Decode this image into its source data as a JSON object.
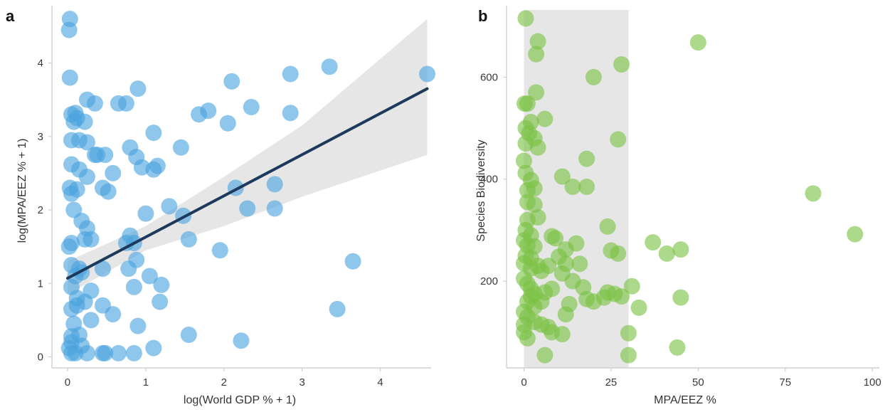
{
  "chart_data": [
    {
      "type": "scatter",
      "panel_label": "a",
      "xlabel": "log(World GDP % + 1)",
      "ylabel": "log(MPA/EEZ % + 1)",
      "xlim": [
        -0.2,
        4.65
      ],
      "ylim": [
        -0.15,
        4.78
      ],
      "xticks": [
        0,
        1,
        2,
        3,
        4
      ],
      "yticks": [
        0,
        1,
        2,
        3,
        4
      ],
      "grid": false,
      "point_color": "#4aa3df",
      "fit_line": {
        "x": [
          0.0,
          4.6
        ],
        "y": [
          1.07,
          3.65
        ],
        "color": "#1d3a5c"
      },
      "confidence_band_color": "#e6e6e6",
      "confidence_band": {
        "x": [
          0.0,
          1.0,
          2.0,
          3.0,
          4.6
        ],
        "upper": [
          1.3,
          1.78,
          2.45,
          3.15,
          4.6
        ],
        "lower": [
          0.85,
          1.45,
          1.78,
          2.18,
          2.75
        ]
      },
      "points": [
        [
          0.03,
          4.6
        ],
        [
          0.02,
          4.45
        ],
        [
          0.03,
          3.8
        ],
        [
          0.9,
          3.65
        ],
        [
          2.1,
          3.75
        ],
        [
          3.35,
          3.95
        ],
        [
          2.85,
          3.85
        ],
        [
          4.6,
          3.85
        ],
        [
          0.25,
          3.5
        ],
        [
          0.35,
          3.45
        ],
        [
          0.65,
          3.45
        ],
        [
          0.75,
          3.45
        ],
        [
          0.05,
          3.3
        ],
        [
          0.1,
          3.32
        ],
        [
          0.12,
          3.25
        ],
        [
          0.08,
          3.2
        ],
        [
          0.22,
          3.2
        ],
        [
          2.35,
          3.4
        ],
        [
          1.8,
          3.35
        ],
        [
          1.68,
          3.3
        ],
        [
          2.05,
          3.18
        ],
        [
          2.85,
          3.32
        ],
        [
          1.1,
          3.05
        ],
        [
          0.05,
          2.95
        ],
        [
          0.15,
          2.95
        ],
        [
          0.25,
          2.92
        ],
        [
          0.35,
          2.75
        ],
        [
          0.48,
          2.75
        ],
        [
          0.8,
          2.85
        ],
        [
          0.88,
          2.72
        ],
        [
          0.95,
          2.58
        ],
        [
          1.1,
          2.55
        ],
        [
          1.45,
          2.85
        ],
        [
          0.05,
          2.62
        ],
        [
          0.15,
          2.55
        ],
        [
          0.25,
          2.45
        ],
        [
          0.58,
          2.5
        ],
        [
          0.38,
          2.75
        ],
        [
          1.15,
          2.6
        ],
        [
          0.03,
          2.3
        ],
        [
          0.12,
          2.28
        ],
        [
          0.05,
          2.22
        ],
        [
          0.45,
          2.3
        ],
        [
          0.52,
          2.25
        ],
        [
          2.15,
          2.3
        ],
        [
          2.65,
          2.35
        ],
        [
          0.08,
          2.0
        ],
        [
          0.18,
          1.85
        ],
        [
          1.0,
          1.95
        ],
        [
          1.3,
          2.05
        ],
        [
          1.48,
          1.92
        ],
        [
          2.3,
          2.02
        ],
        [
          2.65,
          2.02
        ],
        [
          0.25,
          1.75
        ],
        [
          0.3,
          1.6
        ],
        [
          0.22,
          1.6
        ],
        [
          0.85,
          1.55
        ],
        [
          0.75,
          1.55
        ],
        [
          0.8,
          1.65
        ],
        [
          0.05,
          1.55
        ],
        [
          0.02,
          1.5
        ],
        [
          1.55,
          1.6
        ],
        [
          1.95,
          1.45
        ],
        [
          0.05,
          1.25
        ],
        [
          0.15,
          1.2
        ],
        [
          0.1,
          1.1
        ],
        [
          0.45,
          1.2
        ],
        [
          0.78,
          1.2
        ],
        [
          0.88,
          1.32
        ],
        [
          0.18,
          1.15
        ],
        [
          0.3,
          0.9
        ],
        [
          1.05,
          1.1
        ],
        [
          1.2,
          0.98
        ],
        [
          0.05,
          0.95
        ],
        [
          0.12,
          0.8
        ],
        [
          0.22,
          0.75
        ],
        [
          0.45,
          0.7
        ],
        [
          0.05,
          0.65
        ],
        [
          0.58,
          0.58
        ],
        [
          0.85,
          0.95
        ],
        [
          1.18,
          0.75
        ],
        [
          0.3,
          0.5
        ],
        [
          0.08,
          0.45
        ],
        [
          0.15,
          0.3
        ],
        [
          0.05,
          0.2
        ],
        [
          0.18,
          0.15
        ],
        [
          0.25,
          0.05
        ],
        [
          0.45,
          0.05
        ],
        [
          0.48,
          0.05
        ],
        [
          0.05,
          0.05
        ],
        [
          0.1,
          0.05
        ],
        [
          0.85,
          0.05
        ],
        [
          0.05,
          0.28
        ],
        [
          0.65,
          0.05
        ],
        [
          0.9,
          0.42
        ],
        [
          1.1,
          0.12
        ],
        [
          1.55,
          0.3
        ],
        [
          2.22,
          0.22
        ],
        [
          3.45,
          0.65
        ],
        [
          3.65,
          1.3
        ],
        [
          0.02,
          0.12
        ],
        [
          0.12,
          0.7
        ]
      ]
    },
    {
      "type": "scatter",
      "panel_label": "b",
      "xlabel": "MPA/EEZ %",
      "ylabel": "Species Biodiversity",
      "xlim": [
        -5,
        102
      ],
      "ylim": [
        30,
        740
      ],
      "xticks": [
        0,
        25,
        50,
        75,
        100
      ],
      "yticks": [
        200,
        400,
        600
      ],
      "grid": false,
      "point_color": "#7ac143",
      "shaded_x_range": [
        0,
        30
      ],
      "shaded_color": "#e6e6e6",
      "points": [
        [
          0.5,
          715
        ],
        [
          4,
          670
        ],
        [
          3.5,
          645
        ],
        [
          50,
          668
        ],
        [
          28,
          625
        ],
        [
          20,
          600
        ],
        [
          3.5,
          570
        ],
        [
          0.2,
          548
        ],
        [
          1,
          548
        ],
        [
          6,
          518
        ],
        [
          2,
          512
        ],
        [
          0.5,
          500
        ],
        [
          1.5,
          490
        ],
        [
          3,
          480
        ],
        [
          4,
          462
        ],
        [
          0.5,
          470
        ],
        [
          27,
          478
        ],
        [
          0,
          436
        ],
        [
          18,
          440
        ],
        [
          0.5,
          412
        ],
        [
          2,
          398
        ],
        [
          3,
          382
        ],
        [
          1,
          378
        ],
        [
          11,
          405
        ],
        [
          14,
          385
        ],
        [
          18,
          385
        ],
        [
          83,
          372
        ],
        [
          1,
          355
        ],
        [
          3,
          350
        ],
        [
          4,
          325
        ],
        [
          1,
          320
        ],
        [
          0.5,
          300
        ],
        [
          2,
          290
        ],
        [
          0,
          280
        ],
        [
          1,
          270
        ],
        [
          3,
          268
        ],
        [
          0.5,
          250
        ],
        [
          2,
          245
        ],
        [
          8,
          288
        ],
        [
          9,
          284
        ],
        [
          15,
          274
        ],
        [
          12,
          262
        ],
        [
          24,
          307
        ],
        [
          37,
          276
        ],
        [
          45,
          262
        ],
        [
          41,
          254
        ],
        [
          25,
          260
        ],
        [
          27,
          254
        ],
        [
          95,
          292
        ],
        [
          0,
          235
        ],
        [
          2,
          225
        ],
        [
          4,
          230
        ],
        [
          5,
          220
        ],
        [
          7,
          230
        ],
        [
          10,
          248
        ],
        [
          12,
          234
        ],
        [
          16,
          234
        ],
        [
          11,
          215
        ],
        [
          8,
          185
        ],
        [
          6,
          178
        ],
        [
          14,
          200
        ],
        [
          17,
          188
        ],
        [
          18,
          165
        ],
        [
          13,
          155
        ],
        [
          12,
          135
        ],
        [
          0,
          205
        ],
        [
          1,
          195
        ],
        [
          2,
          185
        ],
        [
          3,
          175
        ],
        [
          1,
          160
        ],
        [
          3,
          150
        ],
        [
          0,
          140
        ],
        [
          1,
          130
        ],
        [
          3,
          120
        ],
        [
          5,
          115
        ],
        [
          7,
          110
        ],
        [
          8,
          100
        ],
        [
          11,
          96
        ],
        [
          0,
          100
        ],
        [
          1,
          88
        ],
        [
          24,
          178
        ],
        [
          23,
          168
        ],
        [
          26,
          175
        ],
        [
          28,
          170
        ],
        [
          31,
          190
        ],
        [
          33,
          148
        ],
        [
          45,
          168
        ],
        [
          30,
          98
        ],
        [
          30,
          55
        ],
        [
          44,
          70
        ],
        [
          6,
          55
        ],
        [
          0,
          115
        ],
        [
          2,
          170
        ],
        [
          5,
          160
        ],
        [
          20,
          160
        ]
      ]
    }
  ]
}
